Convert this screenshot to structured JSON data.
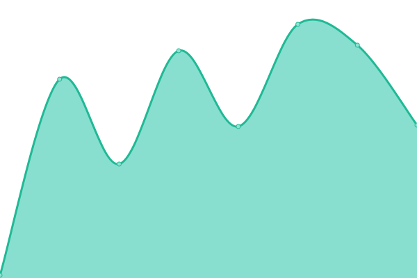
{
  "chart_data": {
    "type": "area",
    "interpolation": "smooth",
    "x": [
      0,
      1,
      2,
      3,
      4,
      5,
      6,
      7
    ],
    "values": [
      4,
      286,
      164,
      327,
      218,
      365,
      335,
      220
    ],
    "ylim": [
      0,
      400
    ],
    "grid": false,
    "axes_visible": false,
    "legend": "none",
    "colors": {
      "line": "#1fb995",
      "fill": "#88dfcf",
      "marker_fill": "#8fe3d2"
    }
  }
}
